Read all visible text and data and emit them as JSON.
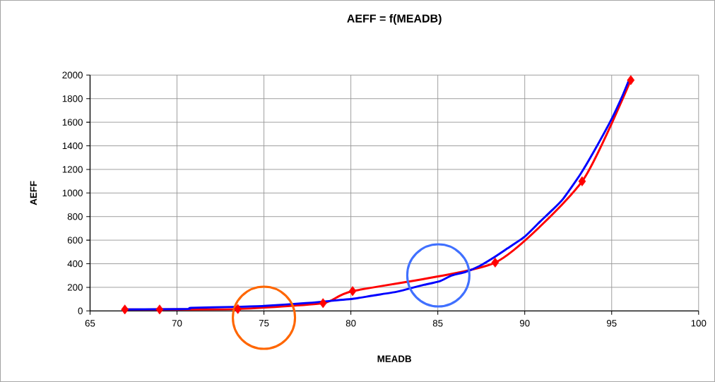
{
  "chart_data": {
    "type": "line",
    "title": "AEFF = f(MEADB)",
    "xlabel": "MEADB",
    "ylabel": "AEFF",
    "xlim": [
      65,
      100
    ],
    "ylim": [
      0,
      2000
    ],
    "xticks": [
      65,
      70,
      75,
      80,
      85,
      90,
      95,
      100
    ],
    "yticks": [
      0,
      200,
      400,
      600,
      800,
      1000,
      1200,
      1400,
      1600,
      1800,
      2000
    ],
    "grid": true,
    "series": [
      {
        "color": "#ff0000",
        "marker": "diamond",
        "x": [
          67,
          69,
          73.5,
          78.4,
          80.1,
          88.3,
          93.3,
          96.1
        ],
        "values": [
          12,
          12,
          16,
          66,
          168,
          410,
          1099,
          1957
        ]
      },
      {
        "color": "#0000ff",
        "marker": "none",
        "x": [
          67,
          70.6,
          70.8,
          73.3,
          75,
          77.4,
          78.4,
          79.3,
          80.1,
          81.3,
          82.6,
          83.4,
          84.2,
          85.1,
          85.8,
          86.6,
          87.4,
          88.2,
          89.0,
          90.0,
          90.9,
          91.5,
          92.2,
          93.2,
          94.0,
          95.0,
          95.6,
          96.0
        ],
        "values": [
          12,
          16,
          26,
          34,
          42,
          66,
          78,
          92,
          102,
          131,
          161,
          191,
          221,
          251,
          301,
          331,
          381,
          451,
          530,
          630,
          760,
          844,
          949,
          1159,
          1358,
          1628,
          1817,
          1960
        ]
      }
    ]
  }
}
